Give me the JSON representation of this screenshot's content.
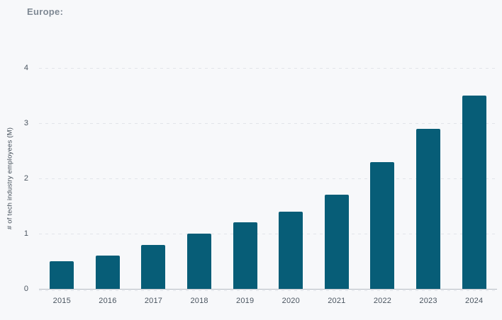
{
  "header": {
    "title": "Europe:"
  },
  "colors": {
    "background": "#f7f8fa",
    "bar": "#075d77",
    "gridline": "#e1e4e9",
    "axis_line": "#b6bcc3",
    "tick_text": "#4a5560",
    "title_text": "#7e8893",
    "axis_title_text": "#414c57"
  },
  "chart_data": {
    "type": "bar",
    "title": "Europe:",
    "categories": [
      "2015",
      "2016",
      "2017",
      "2018",
      "2019",
      "2020",
      "2021",
      "2022",
      "2023",
      "2024"
    ],
    "values": [
      0.5,
      0.6,
      0.8,
      1.0,
      1.2,
      1.4,
      1.7,
      2.3,
      2.9,
      3.5
    ],
    "xlabel": "",
    "ylabel": "# of tech industry employees (M)",
    "ylim": [
      0,
      4
    ],
    "yticks": [
      0,
      1,
      2,
      3,
      4
    ],
    "grid": "horizontal-dashed",
    "legend": "none",
    "bar_color": "#075d77"
  }
}
